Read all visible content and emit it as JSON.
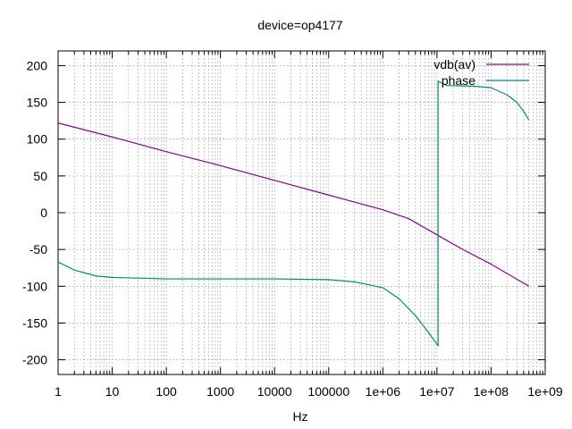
{
  "chart_data": {
    "type": "line",
    "title": "device=op4177",
    "xlabel": "Hz",
    "ylabel": "",
    "x_scale": "log",
    "xlim": [
      1,
      1000000000
    ],
    "ylim": [
      -220,
      220
    ],
    "x_ticks": [
      1,
      10,
      100,
      1000,
      10000,
      100000,
      1000000,
      10000000,
      100000000,
      1000000000
    ],
    "x_tick_labels": [
      "1",
      "10",
      "100",
      "1000",
      "10000",
      "100000",
      "1e+06",
      "1e+07",
      "1e+08",
      "1e+09"
    ],
    "y_ticks": [
      -200,
      -150,
      -100,
      -50,
      0,
      50,
      100,
      150,
      200
    ],
    "y_tick_labels": [
      "-200",
      "-150",
      "-100",
      "-50",
      "0",
      "50",
      "100",
      "150",
      "200"
    ],
    "grid": true,
    "legend_position": "top-right",
    "series": [
      {
        "name": "vdb(av)",
        "color": "#8b008b",
        "points": [
          [
            1,
            122
          ],
          [
            10,
            103
          ],
          [
            100,
            83
          ],
          [
            1000,
            64
          ],
          [
            10000,
            44
          ],
          [
            100000,
            24
          ],
          [
            1000000,
            4
          ],
          [
            3000000,
            -8
          ],
          [
            10000000,
            -30
          ],
          [
            30000000,
            -50
          ],
          [
            100000000,
            -70
          ],
          [
            500000000,
            -100
          ]
        ]
      },
      {
        "name": "phase",
        "color": "#008b74",
        "points": [
          [
            1,
            -67
          ],
          [
            2,
            -78
          ],
          [
            5,
            -86
          ],
          [
            10,
            -88
          ],
          [
            100,
            -90
          ],
          [
            1000,
            -90
          ],
          [
            10000,
            -90
          ],
          [
            100000,
            -91
          ],
          [
            300000,
            -94
          ],
          [
            1000000,
            -102
          ],
          [
            2000000,
            -117
          ],
          [
            4000000,
            -140
          ],
          [
            7000000,
            -163
          ],
          [
            10500000,
            -181
          ],
          [
            10500000,
            179
          ],
          [
            15000000,
            173
          ],
          [
            50000000,
            172
          ],
          [
            100000000,
            170
          ],
          [
            200000000,
            160
          ],
          [
            300000000,
            150
          ],
          [
            400000000,
            138
          ],
          [
            500000000,
            126
          ]
        ]
      }
    ]
  }
}
